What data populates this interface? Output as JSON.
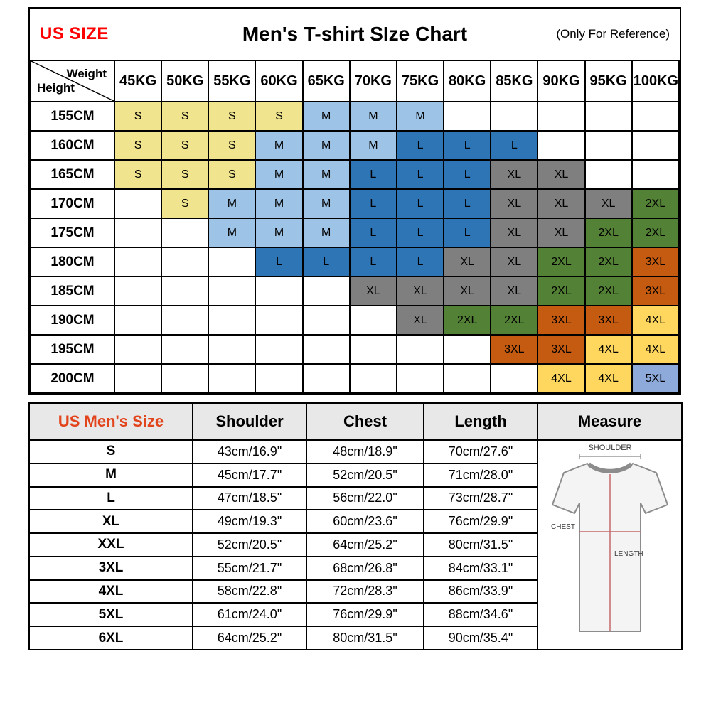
{
  "page": {
    "header_left": "US SIZE",
    "title": "Men's T-shirt SIze Chart",
    "header_right": "(Only For Reference)"
  },
  "colors": {
    "us_size_red": "#fe0000",
    "us_mens_size_red": "#e2441b",
    "header_gray": "#e8e8e8"
  },
  "matrix": {
    "corner_top": "Weight",
    "corner_bottom": "Height",
    "weight_headers": [
      "45KG",
      "50KG",
      "55KG",
      "60KG",
      "65KG",
      "70KG",
      "75KG",
      "80KG",
      "85KG",
      "90KG",
      "95KG",
      "100KG"
    ],
    "size_colors": {
      "S": "#f0e58e",
      "M": "#9dc3e6",
      "L": "#2e75b6",
      "XL": "#7f7f7f",
      "2XL": "#538135",
      "3XL": "#c55a11",
      "4XL": "#ffd75e",
      "5XL": "#8eaadb"
    },
    "rows": [
      {
        "height": "155CM",
        "cells": [
          "S",
          "S",
          "S",
          "S",
          "M",
          "M",
          "M",
          "",
          "",
          "",
          "",
          ""
        ]
      },
      {
        "height": "160CM",
        "cells": [
          "S",
          "S",
          "S",
          "M",
          "M",
          "M",
          "L",
          "L",
          "L",
          "",
          "",
          ""
        ]
      },
      {
        "height": "165CM",
        "cells": [
          "S",
          "S",
          "S",
          "M",
          "M",
          "L",
          "L",
          "L",
          "XL",
          "XL",
          "",
          ""
        ]
      },
      {
        "height": "170CM",
        "cells": [
          "",
          "S",
          "M",
          "M",
          "M",
          "L",
          "L",
          "L",
          "XL",
          "XL",
          "XL",
          "2XL"
        ]
      },
      {
        "height": "175CM",
        "cells": [
          "",
          "",
          "M",
          "M",
          "M",
          "L",
          "L",
          "L",
          "XL",
          "XL",
          "2XL",
          "2XL"
        ]
      },
      {
        "height": "180CM",
        "cells": [
          "",
          "",
          "",
          "L",
          "L",
          "L",
          "L",
          "XL",
          "XL",
          "2XL",
          "2XL",
          "3XL"
        ]
      },
      {
        "height": "185CM",
        "cells": [
          "",
          "",
          "",
          "",
          "",
          "XL",
          "XL",
          "XL",
          "XL",
          "2XL",
          "2XL",
          "3XL"
        ]
      },
      {
        "height": "190CM",
        "cells": [
          "",
          "",
          "",
          "",
          "",
          "",
          "XL",
          "2XL",
          "2XL",
          "3XL",
          "3XL",
          "4XL"
        ]
      },
      {
        "height": "195CM",
        "cells": [
          "",
          "",
          "",
          "",
          "",
          "",
          "",
          "",
          "3XL",
          "3XL",
          "4XL",
          "4XL"
        ]
      },
      {
        "height": "200CM",
        "cells": [
          "",
          "",
          "",
          "",
          "",
          "",
          "",
          "",
          "",
          "4XL",
          "4XL",
          "5XL"
        ]
      }
    ]
  },
  "measurements": {
    "headers": [
      "US Men's Size",
      "Shoulder",
      "Chest",
      "Length",
      "Measure"
    ],
    "rows": [
      {
        "size": "S",
        "shoulder": "43cm/16.9\"",
        "chest": "48cm/18.9\"",
        "length": "70cm/27.6\""
      },
      {
        "size": "M",
        "shoulder": "45cm/17.7\"",
        "chest": "52cm/20.5\"",
        "length": "71cm/28.0\""
      },
      {
        "size": "L",
        "shoulder": "47cm/18.5\"",
        "chest": "56cm/22.0\"",
        "length": "73cm/28.7\""
      },
      {
        "size": "XL",
        "shoulder": "49cm/19.3\"",
        "chest": "60cm/23.6\"",
        "length": "76cm/29.9\""
      },
      {
        "size": "XXL",
        "shoulder": "52cm/20.5\"",
        "chest": "64cm/25.2\"",
        "length": "80cm/31.5\""
      },
      {
        "size": "3XL",
        "shoulder": "55cm/21.7\"",
        "chest": "68cm/26.8\"",
        "length": "84cm/33.1\""
      },
      {
        "size": "4XL",
        "shoulder": "58cm/22.8\"",
        "chest": "72cm/28.3\"",
        "length": "86cm/33.9\""
      },
      {
        "size": "5XL",
        "shoulder": "61cm/24.0\"",
        "chest": "76cm/29.9\"",
        "length": "88cm/34.6\""
      },
      {
        "size": "6XL",
        "shoulder": "64cm/25.2\"",
        "chest": "80cm/31.5\"",
        "length": "90cm/35.4\""
      }
    ],
    "diagram": {
      "shoulder_label": "SHOULDER",
      "chest_label": "CHEST",
      "length_label": "LENGTH"
    }
  }
}
